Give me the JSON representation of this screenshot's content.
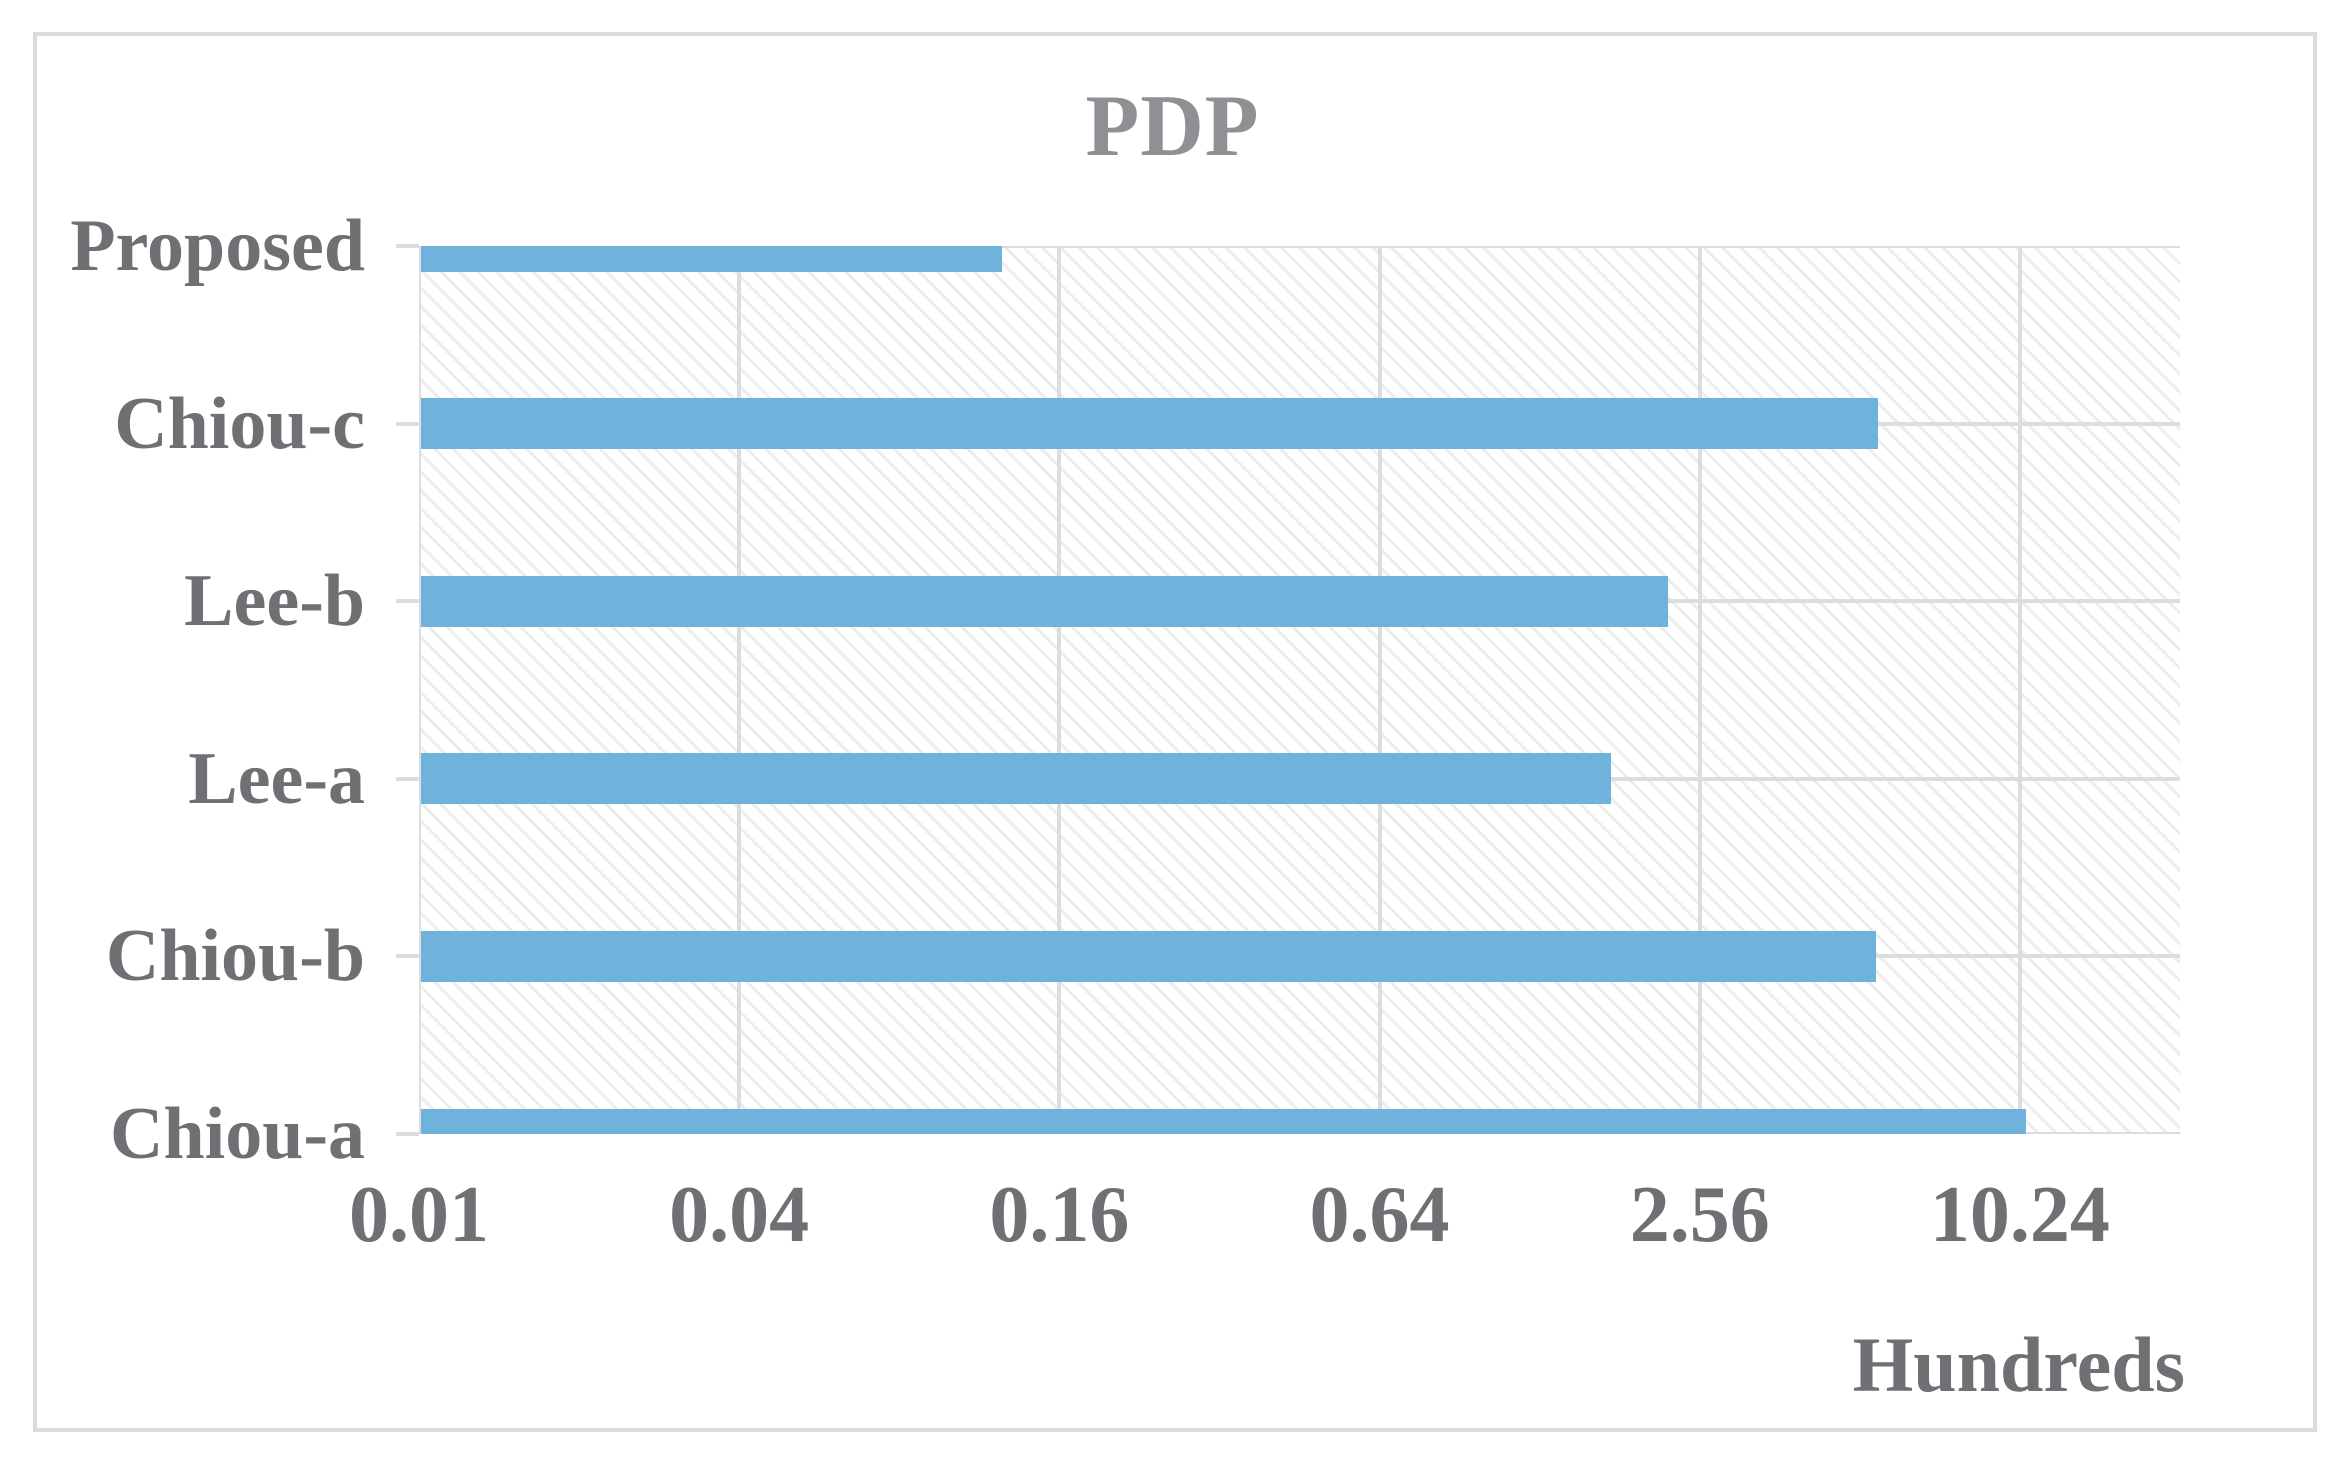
{
  "chart": {
    "title": "PDP",
    "unit_note": "Hundreds",
    "x_tick_labels": [
      "0.01",
      "0.04",
      "0.16",
      "0.64",
      "2.56",
      "10.24"
    ],
    "colors": {
      "bar": "#6FB3DD",
      "gridline": "#DBDDDF",
      "title_text": "#8F9094",
      "axis_text": "#6E7073",
      "hatch_line": "#EDEDEE",
      "chart_border": "#D9DBDD",
      "background": "#FFFFFF"
    }
  },
  "chart_data": {
    "type": "bar",
    "orientation": "horizontal",
    "title": "PDP",
    "categories": [
      "Proposed",
      "Chiou-c",
      "Lee-b",
      "Lee-a",
      "Chiou-b",
      "Chiou-a"
    ],
    "values": [
      0.125,
      5.53,
      2.23,
      1.74,
      5.49,
      10.5
    ],
    "value_axis_unit": "Hundreds",
    "x_scale": "log",
    "x_log_base": 4,
    "x_ticks": [
      0.01,
      0.04,
      0.16,
      0.64,
      2.56,
      10.24
    ],
    "xlim": [
      0.01,
      20.48
    ],
    "xlabel": "",
    "ylabel": "",
    "grid": true,
    "legend": false,
    "plot_background": "light diagonal hatch pattern"
  }
}
